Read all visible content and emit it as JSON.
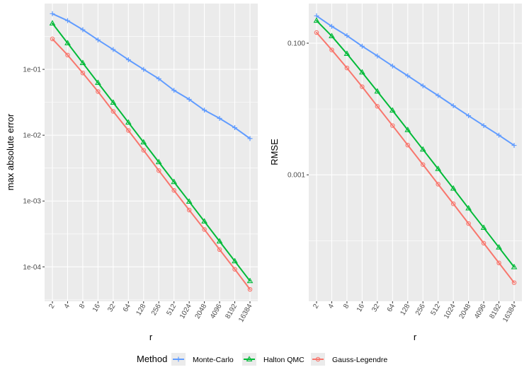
{
  "chart_data": [
    {
      "type": "line",
      "xlabel": "r",
      "ylabel": "max absolute error",
      "yscale": "log10",
      "ylim": [
        3e-05,
        1.0
      ],
      "yticks": [
        0.0001,
        0.001,
        0.01,
        0.1
      ],
      "ytick_labels": [
        "1e-04",
        "1e-03",
        "1e-02",
        "1e-01"
      ],
      "categories": [
        "2",
        "4",
        "8",
        "16",
        "32",
        "64",
        "128",
        "256",
        "512",
        "1024",
        "2048",
        "4096",
        "8192",
        "16384"
      ],
      "series": [
        {
          "name": "Monte-Carlo",
          "marker": "plus",
          "values": [
            0.7,
            0.55,
            0.4,
            0.28,
            0.2,
            0.14,
            0.1,
            0.072,
            0.048,
            0.035,
            0.024,
            0.018,
            0.013,
            0.0089
          ]
        },
        {
          "name": "Halton QMC",
          "marker": "triangle",
          "values": [
            0.5,
            0.25,
            0.125,
            0.0625,
            0.0313,
            0.0156,
            0.0078,
            0.0039,
            0.00195,
            0.00098,
            0.00049,
            0.000244,
            0.000122,
            6.1e-05
          ]
        },
        {
          "name": "Gauss-Legendre",
          "marker": "circle",
          "values": [
            0.29,
            0.165,
            0.088,
            0.046,
            0.023,
            0.0118,
            0.0059,
            0.0029,
            0.00145,
            0.00073,
            0.00037,
            0.000183,
            9.2e-05,
            4.55e-05
          ]
        }
      ]
    },
    {
      "type": "line",
      "xlabel": "r",
      "ylabel": "RMSE",
      "yscale": "log10",
      "ylim": [
        1.2e-05,
        0.4
      ],
      "yticks": [
        0.001,
        0.1
      ],
      "ytick_labels": [
        "0.001",
        "0.100"
      ],
      "categories": [
        "2",
        "4",
        "8",
        "16",
        "32",
        "64",
        "128",
        "256",
        "512",
        "1024",
        "2048",
        "4096",
        "8192",
        "16384"
      ],
      "series": [
        {
          "name": "Monte-Carlo",
          "marker": "plus",
          "values": [
            0.26,
            0.18,
            0.13,
            0.09,
            0.064,
            0.045,
            0.032,
            0.0225,
            0.016,
            0.0112,
            0.0079,
            0.0056,
            0.004,
            0.0028
          ]
        },
        {
          "name": "Halton QMC",
          "marker": "triangle",
          "values": [
            0.22,
            0.128,
            0.069,
            0.036,
            0.0185,
            0.0095,
            0.0048,
            0.00243,
            0.00123,
            0.00062,
            0.00031,
            0.000157,
            7.9e-05,
            3.97e-05
          ]
        },
        {
          "name": "Gauss-Legendre",
          "marker": "circle",
          "values": [
            0.145,
            0.079,
            0.042,
            0.0218,
            0.011,
            0.0056,
            0.00283,
            0.00143,
            0.00072,
            0.000363,
            0.000182,
            9.15e-05,
            4.59e-05,
            2.3e-05
          ]
        }
      ]
    }
  ],
  "legend": {
    "title": "Method",
    "items": [
      {
        "label": "Monte-Carlo",
        "color": "#619CFF",
        "marker": "plus"
      },
      {
        "label": "Halton QMC",
        "color": "#00BA38",
        "marker": "triangle"
      },
      {
        "label": "Gauss-Legendre",
        "color": "#F8766D",
        "marker": "circle"
      }
    ]
  },
  "colors": {
    "Monte-Carlo": "#619CFF",
    "Halton QMC": "#00BA38",
    "Gauss-Legendre": "#F8766D",
    "panel_background": "#EBEBEB",
    "grid": "#FFFFFF"
  }
}
